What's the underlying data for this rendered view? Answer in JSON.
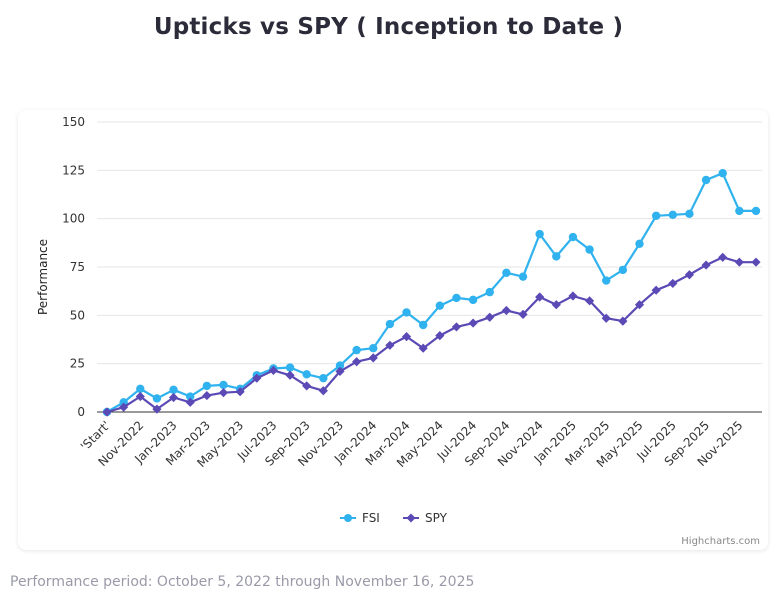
{
  "title": "Upticks vs SPY ( Inception to Date )",
  "footer": "Performance period: October 5, 2022 through November 16, 2025",
  "credits": "Highcharts.com",
  "colors": {
    "fsi": "#2fb2ee",
    "spy": "#5b4ab5",
    "grid": "#e6e6e6",
    "axis": "#333333"
  },
  "chart_data": {
    "type": "line",
    "ylabel": "Performance",
    "xlabel": "",
    "ylim": [
      0,
      150
    ],
    "yticks": [
      0,
      25,
      50,
      75,
      100,
      125,
      150
    ],
    "x_tick_labels": [
      "'Start'",
      "Nov-2022",
      "Jan-2023",
      "Mar-2023",
      "May-2023",
      "Jul-2023",
      "Sep-2023",
      "Nov-2023",
      "Jan-2024",
      "Mar-2024",
      "May-2024",
      "Jul-2024",
      "Sep-2024",
      "Nov-2024",
      "Jan-2025",
      "Mar-2025",
      "May-2025",
      "Jul-2025",
      "Sep-2025",
      "Nov-2025"
    ],
    "grid": true,
    "legend_position": "bottom-center",
    "series": [
      {
        "name": "FSI",
        "marker": "circle",
        "values": [
          0,
          5,
          12,
          7,
          11.5,
          8,
          13.5,
          14,
          12,
          19,
          22.5,
          23,
          19.5,
          17.5,
          24,
          32,
          33,
          45.5,
          51.5,
          45,
          55,
          59,
          58,
          62,
          72,
          70,
          92,
          80.5,
          90.5,
          84,
          68,
          73.5,
          87,
          101.5,
          102,
          102.5,
          120,
          123.5,
          104,
          104
        ]
      },
      {
        "name": "SPY",
        "marker": "diamond",
        "values": [
          0,
          2.5,
          8,
          1.5,
          7.5,
          5,
          8.5,
          10,
          10.5,
          17.5,
          21.5,
          19,
          13.5,
          11,
          21,
          26,
          28,
          34.5,
          39,
          33,
          39.5,
          44,
          46,
          49,
          52.5,
          50.5,
          59.5,
          55.5,
          60,
          57.5,
          48.5,
          47,
          55.5,
          63,
          66.5,
          71,
          76,
          80,
          77.5,
          77.5
        ]
      }
    ]
  }
}
